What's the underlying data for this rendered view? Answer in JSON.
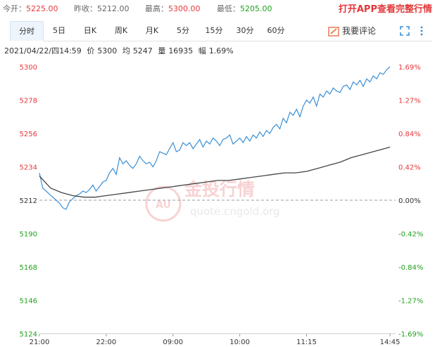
{
  "header": {
    "open_label": "今开：",
    "open_value": "5225.00",
    "prev_close_label": "昨收：",
    "prev_close_value": "5212.00",
    "high_label": "最高：",
    "high_value": "5300.00",
    "low_label": "最低：",
    "low_value": "5205.00",
    "promo": "打开APP查看完整行情"
  },
  "tabs": [
    {
      "label": "分时",
      "active": true
    },
    {
      "label": "5日"
    },
    {
      "label": "日K"
    },
    {
      "label": "周K"
    },
    {
      "label": "月K"
    },
    {
      "label": "5分"
    },
    {
      "label": "15分"
    },
    {
      "label": "30分"
    },
    {
      "label": "60分"
    }
  ],
  "review_label": "我要评论",
  "info": {
    "datetime": "2021/04/22/四14:59",
    "price_label": "价",
    "price": "5300",
    "avg_label": "均",
    "avg": "5247",
    "vol_label": "量",
    "vol": "16935",
    "amp_label": "幅",
    "amp": "1.69%"
  },
  "watermark": {
    "brand": "金投行情",
    "url": "quote.cngold.org"
  },
  "colors": {
    "up": "#e4393c",
    "down": "#22a01f",
    "price_line": "#3a8fd6",
    "avg_line": "#444444",
    "baseline": "#9a9aa8",
    "accent": "#e8663a"
  },
  "chart_data": {
    "type": "line",
    "ylim": [
      5124,
      5300
    ],
    "baseline": 5212,
    "y_ticks_left": [
      "5300",
      "5278",
      "5256",
      "5234",
      "5212",
      "5190",
      "5168",
      "5146",
      "5124"
    ],
    "y_ticks_right": [
      "1.69%",
      "1.27%",
      "0.84%",
      "0.42%",
      "0.00%",
      "-0.42%",
      "-0.84%",
      "-1.27%",
      "-1.69%"
    ],
    "x_ticks": [
      {
        "label": "21:00",
        "t": 0
      },
      {
        "label": "22:00",
        "t": 60
      },
      {
        "label": "09:00",
        "t": 120
      },
      {
        "label": "10:00",
        "t": 180
      },
      {
        "label": "11:15",
        "t": 240
      },
      {
        "label": "14:45",
        "t": 315
      }
    ],
    "t_max": 320,
    "series": [
      {
        "values_t": [
          0,
          3,
          6,
          9,
          12,
          15,
          18,
          21,
          24,
          27,
          30,
          33,
          36,
          39,
          42,
          45,
          48,
          51,
          54,
          57,
          60,
          63,
          66,
          69,
          72,
          75,
          78,
          81,
          84,
          87,
          90,
          93,
          96,
          99,
          102,
          105,
          108,
          111,
          114,
          117,
          120,
          123,
          126,
          129,
          132,
          135,
          138,
          141,
          144,
          147,
          150,
          153,
          156,
          159,
          162,
          165,
          168,
          171,
          174,
          177,
          180,
          183,
          186,
          189,
          192,
          195,
          198,
          201,
          204,
          207,
          210,
          213,
          216,
          219,
          222,
          225,
          228,
          231,
          234,
          237,
          240,
          243,
          246,
          249,
          252,
          255,
          258,
          261,
          264,
          267,
          270,
          273,
          276,
          279,
          282,
          285,
          288,
          291,
          294,
          297,
          300,
          303,
          306,
          309,
          312,
          315
        ],
        "values": [
          5230,
          5220,
          5218,
          5216,
          5214,
          5212,
          5210,
          5207,
          5206,
          5211,
          5213,
          5215,
          5216,
          5218,
          5217,
          5219,
          5222,
          5218,
          5221,
          5224,
          5225,
          5230,
          5233,
          5229,
          5240,
          5236,
          5238,
          5235,
          5233,
          5236,
          5241,
          5238,
          5236,
          5237,
          5234,
          5238,
          5244,
          5243,
          5242,
          5246,
          5250,
          5244,
          5245,
          5250,
          5248,
          5250,
          5246,
          5249,
          5252,
          5247,
          5251,
          5249,
          5253,
          5251,
          5248,
          5252,
          5253,
          5255,
          5249,
          5251,
          5253,
          5250,
          5254,
          5251,
          5255,
          5253,
          5257,
          5254,
          5258,
          5256,
          5260,
          5262,
          5259,
          5266,
          5263,
          5270,
          5268,
          5272,
          5267,
          5274,
          5278,
          5276,
          5280,
          5274,
          5282,
          5280,
          5284,
          5282,
          5286,
          5284,
          5283,
          5287,
          5288,
          5285,
          5290,
          5288,
          5291,
          5287,
          5292,
          5290,
          5294,
          5292,
          5296,
          5295,
          5298,
          5300
        ]
      },
      {
        "values_t": [
          0,
          10,
          20,
          30,
          40,
          50,
          60,
          70,
          80,
          90,
          100,
          110,
          120,
          130,
          140,
          150,
          160,
          170,
          180,
          190,
          200,
          210,
          220,
          230,
          240,
          250,
          260,
          270,
          280,
          290,
          300,
          310,
          315
        ],
        "values": [
          5228,
          5220,
          5217,
          5215,
          5214,
          5214,
          5215,
          5216,
          5217,
          5218,
          5219,
          5220,
          5221,
          5222,
          5223,
          5224,
          5225,
          5225,
          5226,
          5227,
          5228,
          5229,
          5230,
          5230,
          5231,
          5233,
          5235,
          5237,
          5240,
          5242,
          5244,
          5246,
          5247
        ]
      }
    ]
  }
}
